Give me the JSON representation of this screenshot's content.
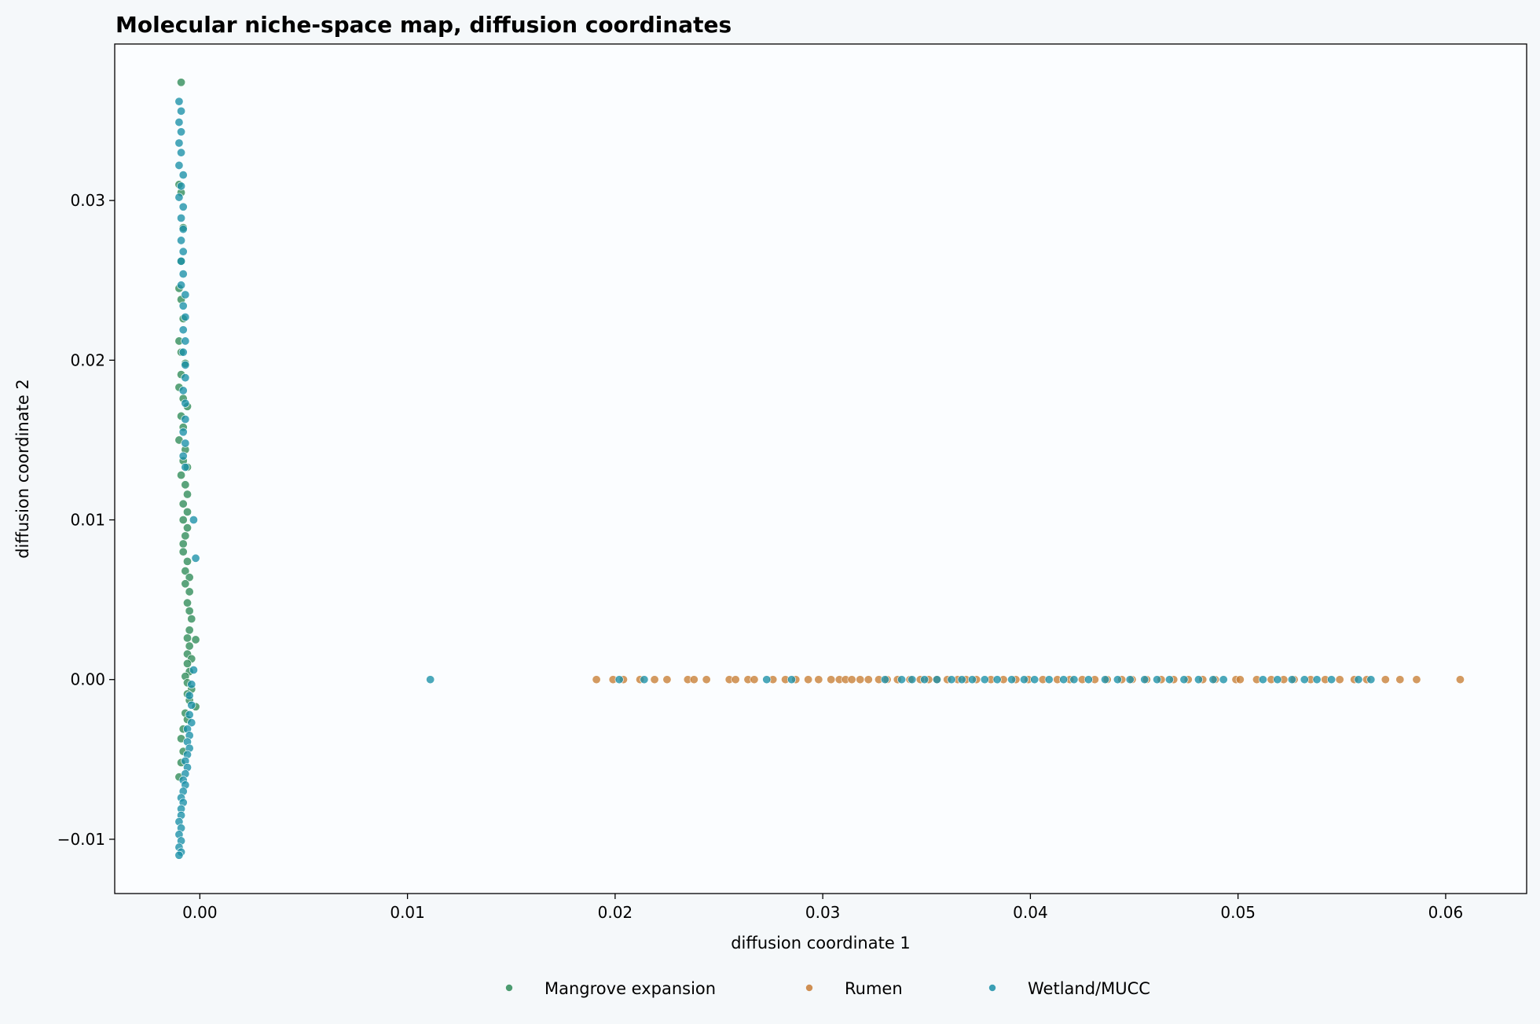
{
  "chart_data": {
    "type": "scatter",
    "title": "Molecular niche-space map, diffusion coordinates",
    "xlabel": "diffusion coordinate 1",
    "ylabel": "diffusion coordinate 2",
    "xlim": [
      -0.0041,
      0.0639
    ],
    "ylim": [
      -0.0134,
      0.0398
    ],
    "xticks": [
      {
        "value": 0.0,
        "label": "0.00"
      },
      {
        "value": 0.01,
        "label": "0.01"
      },
      {
        "value": 0.02,
        "label": "0.02"
      },
      {
        "value": 0.03,
        "label": "0.03"
      },
      {
        "value": 0.04,
        "label": "0.04"
      },
      {
        "value": 0.05,
        "label": "0.05"
      },
      {
        "value": 0.06,
        "label": "0.06"
      }
    ],
    "yticks": [
      {
        "value": -0.01,
        "label": "−0.01"
      },
      {
        "value": 0.0,
        "label": "0.00"
      },
      {
        "value": 0.01,
        "label": "0.01"
      },
      {
        "value": 0.02,
        "label": "0.02"
      },
      {
        "value": 0.03,
        "label": "0.03"
      }
    ],
    "grid": false,
    "legend_position": "bottom-center",
    "series": [
      {
        "name": "Mangrove expansion",
        "color": "#2e8b57",
        "points": [
          [
            -0.0009,
            0.0374
          ],
          [
            -0.001,
            0.031
          ],
          [
            -0.0009,
            0.0305
          ],
          [
            -0.0008,
            0.0283
          ],
          [
            -0.0009,
            0.0262
          ],
          [
            -0.001,
            0.0245
          ],
          [
            -0.0009,
            0.0238
          ],
          [
            -0.0008,
            0.0226
          ],
          [
            -0.001,
            0.0212
          ],
          [
            -0.0009,
            0.0205
          ],
          [
            -0.0007,
            0.0198
          ],
          [
            -0.0009,
            0.0191
          ],
          [
            -0.001,
            0.0183
          ],
          [
            -0.0008,
            0.0176
          ],
          [
            -0.0006,
            0.0171
          ],
          [
            -0.0009,
            0.0165
          ],
          [
            -0.0008,
            0.0158
          ],
          [
            -0.001,
            0.015
          ],
          [
            -0.0007,
            0.0144
          ],
          [
            -0.0008,
            0.0137
          ],
          [
            -0.0006,
            0.0133
          ],
          [
            -0.0009,
            0.0128
          ],
          [
            -0.0007,
            0.0122
          ],
          [
            -0.0006,
            0.0116
          ],
          [
            -0.0008,
            0.011
          ],
          [
            -0.0006,
            0.0105
          ],
          [
            -0.0008,
            0.01
          ],
          [
            -0.0006,
            0.0095
          ],
          [
            -0.0007,
            0.009
          ],
          [
            -0.0008,
            0.0085
          ],
          [
            -0.0008,
            0.008
          ],
          [
            -0.0006,
            0.0074
          ],
          [
            -0.0007,
            0.0068
          ],
          [
            -0.0005,
            0.0064
          ],
          [
            -0.0007,
            0.006
          ],
          [
            -0.0005,
            0.0055
          ],
          [
            -0.0006,
            0.0048
          ],
          [
            -0.0005,
            0.0043
          ],
          [
            -0.0004,
            0.0038
          ],
          [
            -0.0005,
            0.0031
          ],
          [
            -0.0006,
            0.0026
          ],
          [
            -0.0002,
            0.0025
          ],
          [
            -0.0005,
            0.0021
          ],
          [
            -0.0006,
            0.0016
          ],
          [
            -0.0004,
            0.0013
          ],
          [
            -0.0006,
            0.001
          ],
          [
            -0.0005,
            0.0005
          ],
          [
            -0.0007,
            0.0002
          ],
          [
            -0.0006,
            -0.0002
          ],
          [
            -0.0004,
            -0.0006
          ],
          [
            -0.0006,
            -0.0009
          ],
          [
            -0.0005,
            -0.0013
          ],
          [
            -0.0002,
            -0.0017
          ],
          [
            -0.0007,
            -0.0021
          ],
          [
            -0.0006,
            -0.0025
          ],
          [
            -0.0008,
            -0.0031
          ],
          [
            -0.0009,
            -0.0037
          ],
          [
            -0.0008,
            -0.0045
          ],
          [
            -0.0009,
            -0.0052
          ],
          [
            -0.001,
            -0.0061
          ]
        ]
      },
      {
        "name": "Rumen",
        "color": "#c87d35",
        "points": [
          [
            0.0191,
            0
          ],
          [
            0.0199,
            0
          ],
          [
            0.0204,
            0
          ],
          [
            0.0212,
            0
          ],
          [
            0.0219,
            0
          ],
          [
            0.0225,
            0
          ],
          [
            0.0235,
            0
          ],
          [
            0.0238,
            0
          ],
          [
            0.0244,
            0
          ],
          [
            0.0255,
            0
          ],
          [
            0.0258,
            0
          ],
          [
            0.0264,
            0
          ],
          [
            0.0267,
            0
          ],
          [
            0.0276,
            0
          ],
          [
            0.0282,
            0
          ],
          [
            0.0287,
            0
          ],
          [
            0.0293,
            0
          ],
          [
            0.0298,
            0
          ],
          [
            0.0304,
            0
          ],
          [
            0.0308,
            0
          ],
          [
            0.0311,
            0
          ],
          [
            0.0314,
            0
          ],
          [
            0.0318,
            0
          ],
          [
            0.0322,
            0
          ],
          [
            0.0327,
            0
          ],
          [
            0.0331,
            0
          ],
          [
            0.0336,
            0
          ],
          [
            0.0342,
            0
          ],
          [
            0.0347,
            0
          ],
          [
            0.0351,
            0
          ],
          [
            0.0355,
            0
          ],
          [
            0.036,
            0
          ],
          [
            0.0365,
            0
          ],
          [
            0.0369,
            0
          ],
          [
            0.0374,
            0
          ],
          [
            0.0381,
            0
          ],
          [
            0.0387,
            0
          ],
          [
            0.0393,
            0
          ],
          [
            0.0399,
            0
          ],
          [
            0.0406,
            0
          ],
          [
            0.0413,
            0
          ],
          [
            0.0419,
            0
          ],
          [
            0.0425,
            0
          ],
          [
            0.0431,
            0
          ],
          [
            0.0437,
            0
          ],
          [
            0.0444,
            0
          ],
          [
            0.0449,
            0
          ],
          [
            0.0456,
            0
          ],
          [
            0.0463,
            0
          ],
          [
            0.0469,
            0
          ],
          [
            0.0476,
            0
          ],
          [
            0.0483,
            0
          ],
          [
            0.0489,
            0
          ],
          [
            0.0499,
            0
          ],
          [
            0.0501,
            0
          ],
          [
            0.0509,
            0
          ],
          [
            0.0516,
            0
          ],
          [
            0.0522,
            0
          ],
          [
            0.0527,
            0
          ],
          [
            0.0535,
            0
          ],
          [
            0.0542,
            0
          ],
          [
            0.0549,
            0
          ],
          [
            0.0556,
            0
          ],
          [
            0.0562,
            0
          ],
          [
            0.0571,
            0
          ],
          [
            0.0578,
            0
          ],
          [
            0.0586,
            0
          ],
          [
            0.0607,
            0
          ]
        ]
      },
      {
        "name": "Wetland/MUCC",
        "color": "#1a8fa8",
        "points": [
          [
            -0.001,
            0.0362
          ],
          [
            -0.0009,
            0.0356
          ],
          [
            -0.001,
            0.0349
          ],
          [
            -0.0009,
            0.0343
          ],
          [
            -0.001,
            0.0336
          ],
          [
            -0.0009,
            0.033
          ],
          [
            -0.001,
            0.0322
          ],
          [
            -0.0008,
            0.0316
          ],
          [
            -0.0009,
            0.0309
          ],
          [
            -0.001,
            0.0302
          ],
          [
            -0.0008,
            0.0296
          ],
          [
            -0.0009,
            0.0289
          ],
          [
            -0.0008,
            0.0282
          ],
          [
            -0.0009,
            0.0275
          ],
          [
            -0.0008,
            0.0268
          ],
          [
            -0.0009,
            0.0262
          ],
          [
            -0.0008,
            0.0254
          ],
          [
            -0.0009,
            0.0247
          ],
          [
            -0.0007,
            0.0241
          ],
          [
            -0.0008,
            0.0234
          ],
          [
            -0.0007,
            0.0227
          ],
          [
            -0.0008,
            0.0219
          ],
          [
            -0.0007,
            0.0212
          ],
          [
            -0.0008,
            0.0205
          ],
          [
            -0.0007,
            0.0197
          ],
          [
            -0.0007,
            0.0189
          ],
          [
            -0.0008,
            0.0181
          ],
          [
            -0.0007,
            0.0173
          ],
          [
            -0.0007,
            0.0163
          ],
          [
            -0.0008,
            0.0155
          ],
          [
            -0.0007,
            0.0148
          ],
          [
            -0.0008,
            0.014
          ],
          [
            -0.0007,
            0.0133
          ],
          [
            -0.0003,
            0.01
          ],
          [
            -0.0002,
            0.0076
          ],
          [
            -0.0003,
            0.0006
          ],
          [
            -0.0004,
            -0.0003
          ],
          [
            -0.0005,
            -0.001
          ],
          [
            -0.0004,
            -0.0016
          ],
          [
            -0.0005,
            -0.0022
          ],
          [
            -0.0004,
            -0.0027
          ],
          [
            -0.0006,
            -0.0031
          ],
          [
            -0.0005,
            -0.0035
          ],
          [
            -0.0006,
            -0.0039
          ],
          [
            -0.0005,
            -0.0043
          ],
          [
            -0.0006,
            -0.0047
          ],
          [
            -0.0007,
            -0.0051
          ],
          [
            -0.0006,
            -0.0055
          ],
          [
            -0.0007,
            -0.0059
          ],
          [
            -0.0008,
            -0.0063
          ],
          [
            -0.0007,
            -0.0066
          ],
          [
            -0.0008,
            -0.007
          ],
          [
            -0.0009,
            -0.0074
          ],
          [
            -0.0008,
            -0.0077
          ],
          [
            -0.0009,
            -0.0081
          ],
          [
            -0.0009,
            -0.0085
          ],
          [
            -0.001,
            -0.0089
          ],
          [
            -0.0009,
            -0.0093
          ],
          [
            -0.001,
            -0.0097
          ],
          [
            -0.0009,
            -0.0101
          ],
          [
            -0.001,
            -0.0105
          ],
          [
            -0.0009,
            -0.0108
          ],
          [
            -0.001,
            -0.011
          ],
          [
            0.0111,
            0
          ],
          [
            0.0202,
            0
          ],
          [
            0.0214,
            0
          ],
          [
            0.0273,
            0
          ],
          [
            0.0285,
            0
          ],
          [
            0.033,
            0
          ],
          [
            0.0338,
            0
          ],
          [
            0.0343,
            0
          ],
          [
            0.0349,
            0
          ],
          [
            0.0355,
            0
          ],
          [
            0.0362,
            0
          ],
          [
            0.0367,
            0
          ],
          [
            0.0372,
            0
          ],
          [
            0.0378,
            0
          ],
          [
            0.0384,
            0
          ],
          [
            0.0391,
            0
          ],
          [
            0.0397,
            0
          ],
          [
            0.0402,
            0
          ],
          [
            0.0409,
            0
          ],
          [
            0.0416,
            0
          ],
          [
            0.0421,
            0
          ],
          [
            0.0428,
            0
          ],
          [
            0.0436,
            0
          ],
          [
            0.0442,
            0
          ],
          [
            0.0448,
            0
          ],
          [
            0.0455,
            0
          ],
          [
            0.0461,
            0
          ],
          [
            0.0467,
            0
          ],
          [
            0.0474,
            0
          ],
          [
            0.0481,
            0
          ],
          [
            0.0488,
            0
          ],
          [
            0.0493,
            0
          ],
          [
            0.0512,
            0
          ],
          [
            0.0519,
            0
          ],
          [
            0.0526,
            0
          ],
          [
            0.0532,
            0
          ],
          [
            0.0538,
            0
          ],
          [
            0.0545,
            0
          ],
          [
            0.0558,
            0
          ],
          [
            0.0564,
            0
          ]
        ]
      }
    ]
  }
}
